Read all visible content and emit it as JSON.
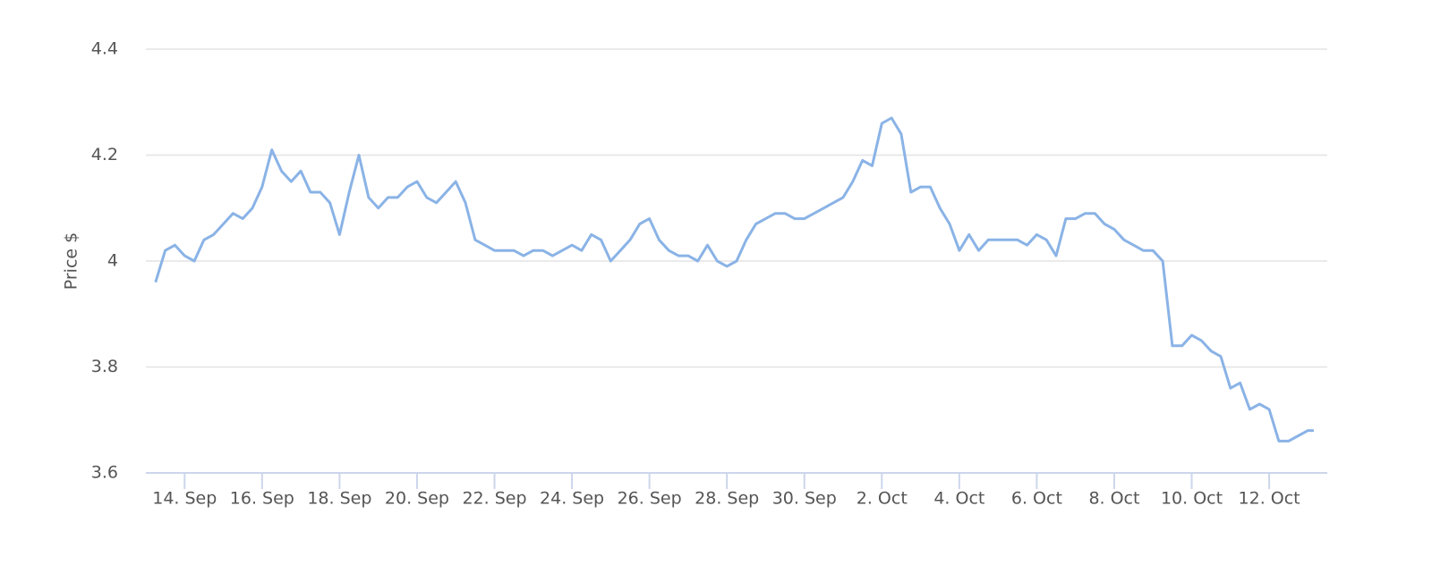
{
  "chart_data": {
    "type": "line",
    "y_label": "Price $",
    "xlim": [
      13,
      43.5
    ],
    "ylim": [
      3.6,
      4.4
    ],
    "yticks": [
      3.6,
      3.8,
      4,
      4.2,
      4.4
    ],
    "xticks": [
      {
        "value": 14,
        "label": "14. Sep"
      },
      {
        "value": 16,
        "label": "16. Sep"
      },
      {
        "value": 18,
        "label": "18. Sep"
      },
      {
        "value": 20,
        "label": "20. Sep"
      },
      {
        "value": 22,
        "label": "22. Sep"
      },
      {
        "value": 24,
        "label": "24. Sep"
      },
      {
        "value": 26,
        "label": "26. Sep"
      },
      {
        "value": 28,
        "label": "28. Sep"
      },
      {
        "value": 30,
        "label": "30. Sep"
      },
      {
        "value": 32,
        "label": "2. Oct"
      },
      {
        "value": 34,
        "label": "4. Oct"
      },
      {
        "value": 36,
        "label": "6. Oct"
      },
      {
        "value": 38,
        "label": "8. Oct"
      },
      {
        "value": 40,
        "label": "10. Oct"
      },
      {
        "value": 42,
        "label": "12. Oct"
      }
    ],
    "grid": true,
    "x": [
      13.25,
      13.5,
      13.75,
      14,
      14.25,
      14.5,
      14.75,
      15,
      15.25,
      15.5,
      15.75,
      16,
      16.25,
      16.5,
      16.75,
      17,
      17.25,
      17.5,
      17.75,
      18,
      18.25,
      18.5,
      18.75,
      19,
      19.25,
      19.5,
      19.75,
      20,
      20.25,
      20.5,
      20.75,
      21,
      21.25,
      21.5,
      21.75,
      22,
      22.25,
      22.5,
      22.75,
      23,
      23.25,
      23.5,
      23.75,
      24,
      24.25,
      24.5,
      24.75,
      25,
      25.25,
      25.5,
      25.75,
      26,
      26.25,
      26.5,
      26.75,
      27,
      27.25,
      27.5,
      27.75,
      28,
      28.25,
      28.5,
      28.75,
      29,
      29.25,
      29.5,
      29.75,
      30,
      30.25,
      30.5,
      30.75,
      31,
      31.25,
      31.5,
      31.75,
      32,
      32.25,
      32.5,
      32.75,
      33,
      33.25,
      33.5,
      33.75,
      34,
      34.25,
      34.5,
      34.75,
      35,
      35.25,
      35.5,
      35.75,
      36,
      36.25,
      36.5,
      36.75,
      37,
      37.25,
      37.5,
      37.75,
      38,
      38.25,
      38.5,
      38.75,
      39,
      39.25,
      39.5,
      39.75,
      40,
      40.25,
      40.5,
      40.75,
      41,
      41.25,
      41.5,
      41.75,
      42,
      42.25,
      42.5,
      42.75,
      43,
      43.15
    ],
    "series": [
      {
        "color": "#8ab3e6",
        "values": [
          3.96,
          4.02,
          4.03,
          4.01,
          4.0,
          4.04,
          4.05,
          4.07,
          4.09,
          4.08,
          4.1,
          4.14,
          4.21,
          4.17,
          4.15,
          4.17,
          4.13,
          4.13,
          4.11,
          4.05,
          4.13,
          4.2,
          4.12,
          4.1,
          4.12,
          4.12,
          4.14,
          4.15,
          4.12,
          4.11,
          4.13,
          4.15,
          4.11,
          4.04,
          4.03,
          4.02,
          4.02,
          4.02,
          4.01,
          4.02,
          4.02,
          4.01,
          4.02,
          4.03,
          4.02,
          4.05,
          4.04,
          4.0,
          4.02,
          4.04,
          4.07,
          4.08,
          4.04,
          4.02,
          4.01,
          4.01,
          4.0,
          4.03,
          4.0,
          3.99,
          4.0,
          4.04,
          4.07,
          4.08,
          4.09,
          4.09,
          4.08,
          4.08,
          4.09,
          4.1,
          4.11,
          4.12,
          4.15,
          4.19,
          4.18,
          4.26,
          4.27,
          4.24,
          4.13,
          4.14,
          4.14,
          4.1,
          4.07,
          4.02,
          4.05,
          4.02,
          4.04,
          4.04,
          4.04,
          4.04,
          4.03,
          4.05,
          4.04,
          4.01,
          4.08,
          4.08,
          4.09,
          4.09,
          4.07,
          4.06,
          4.04,
          4.03,
          4.02,
          4.02,
          4.0,
          3.84,
          3.84,
          3.86,
          3.85,
          3.83,
          3.82,
          3.76,
          3.77,
          3.72,
          3.73,
          3.72,
          3.66,
          3.66,
          3.67,
          3.68,
          3.68
        ]
      }
    ]
  }
}
